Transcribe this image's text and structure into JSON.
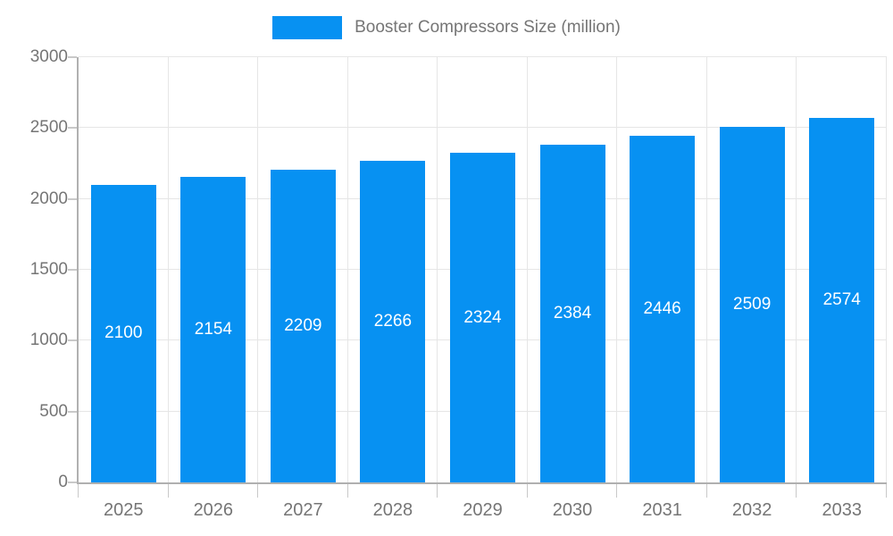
{
  "chart_data": {
    "type": "bar",
    "categories": [
      "2025",
      "2026",
      "2027",
      "2028",
      "2029",
      "2030",
      "2031",
      "2032",
      "2033"
    ],
    "series": [
      {
        "name": "Booster Compressors Size (million)",
        "values": [
          2100,
          2154,
          2209,
          2266,
          2324,
          2384,
          2446,
          2509,
          2574
        ]
      }
    ],
    "title": "",
    "xlabel": "",
    "ylabel": "",
    "ylim": [
      0,
      3000
    ],
    "y_ticks": [
      0,
      500,
      1000,
      1500,
      2000,
      2500,
      3000
    ],
    "grid": true,
    "legend_position": "top-center",
    "bar_value_labels": "inside-middle",
    "colors": {
      "bar": "#0791f2",
      "bar_label_text": "#ffffff",
      "axis_text": "#757575",
      "axis_line": "#b0b0b0",
      "gridline": "#e6e6e6",
      "tick": "#c9c9c9",
      "background": "#ffffff"
    }
  }
}
